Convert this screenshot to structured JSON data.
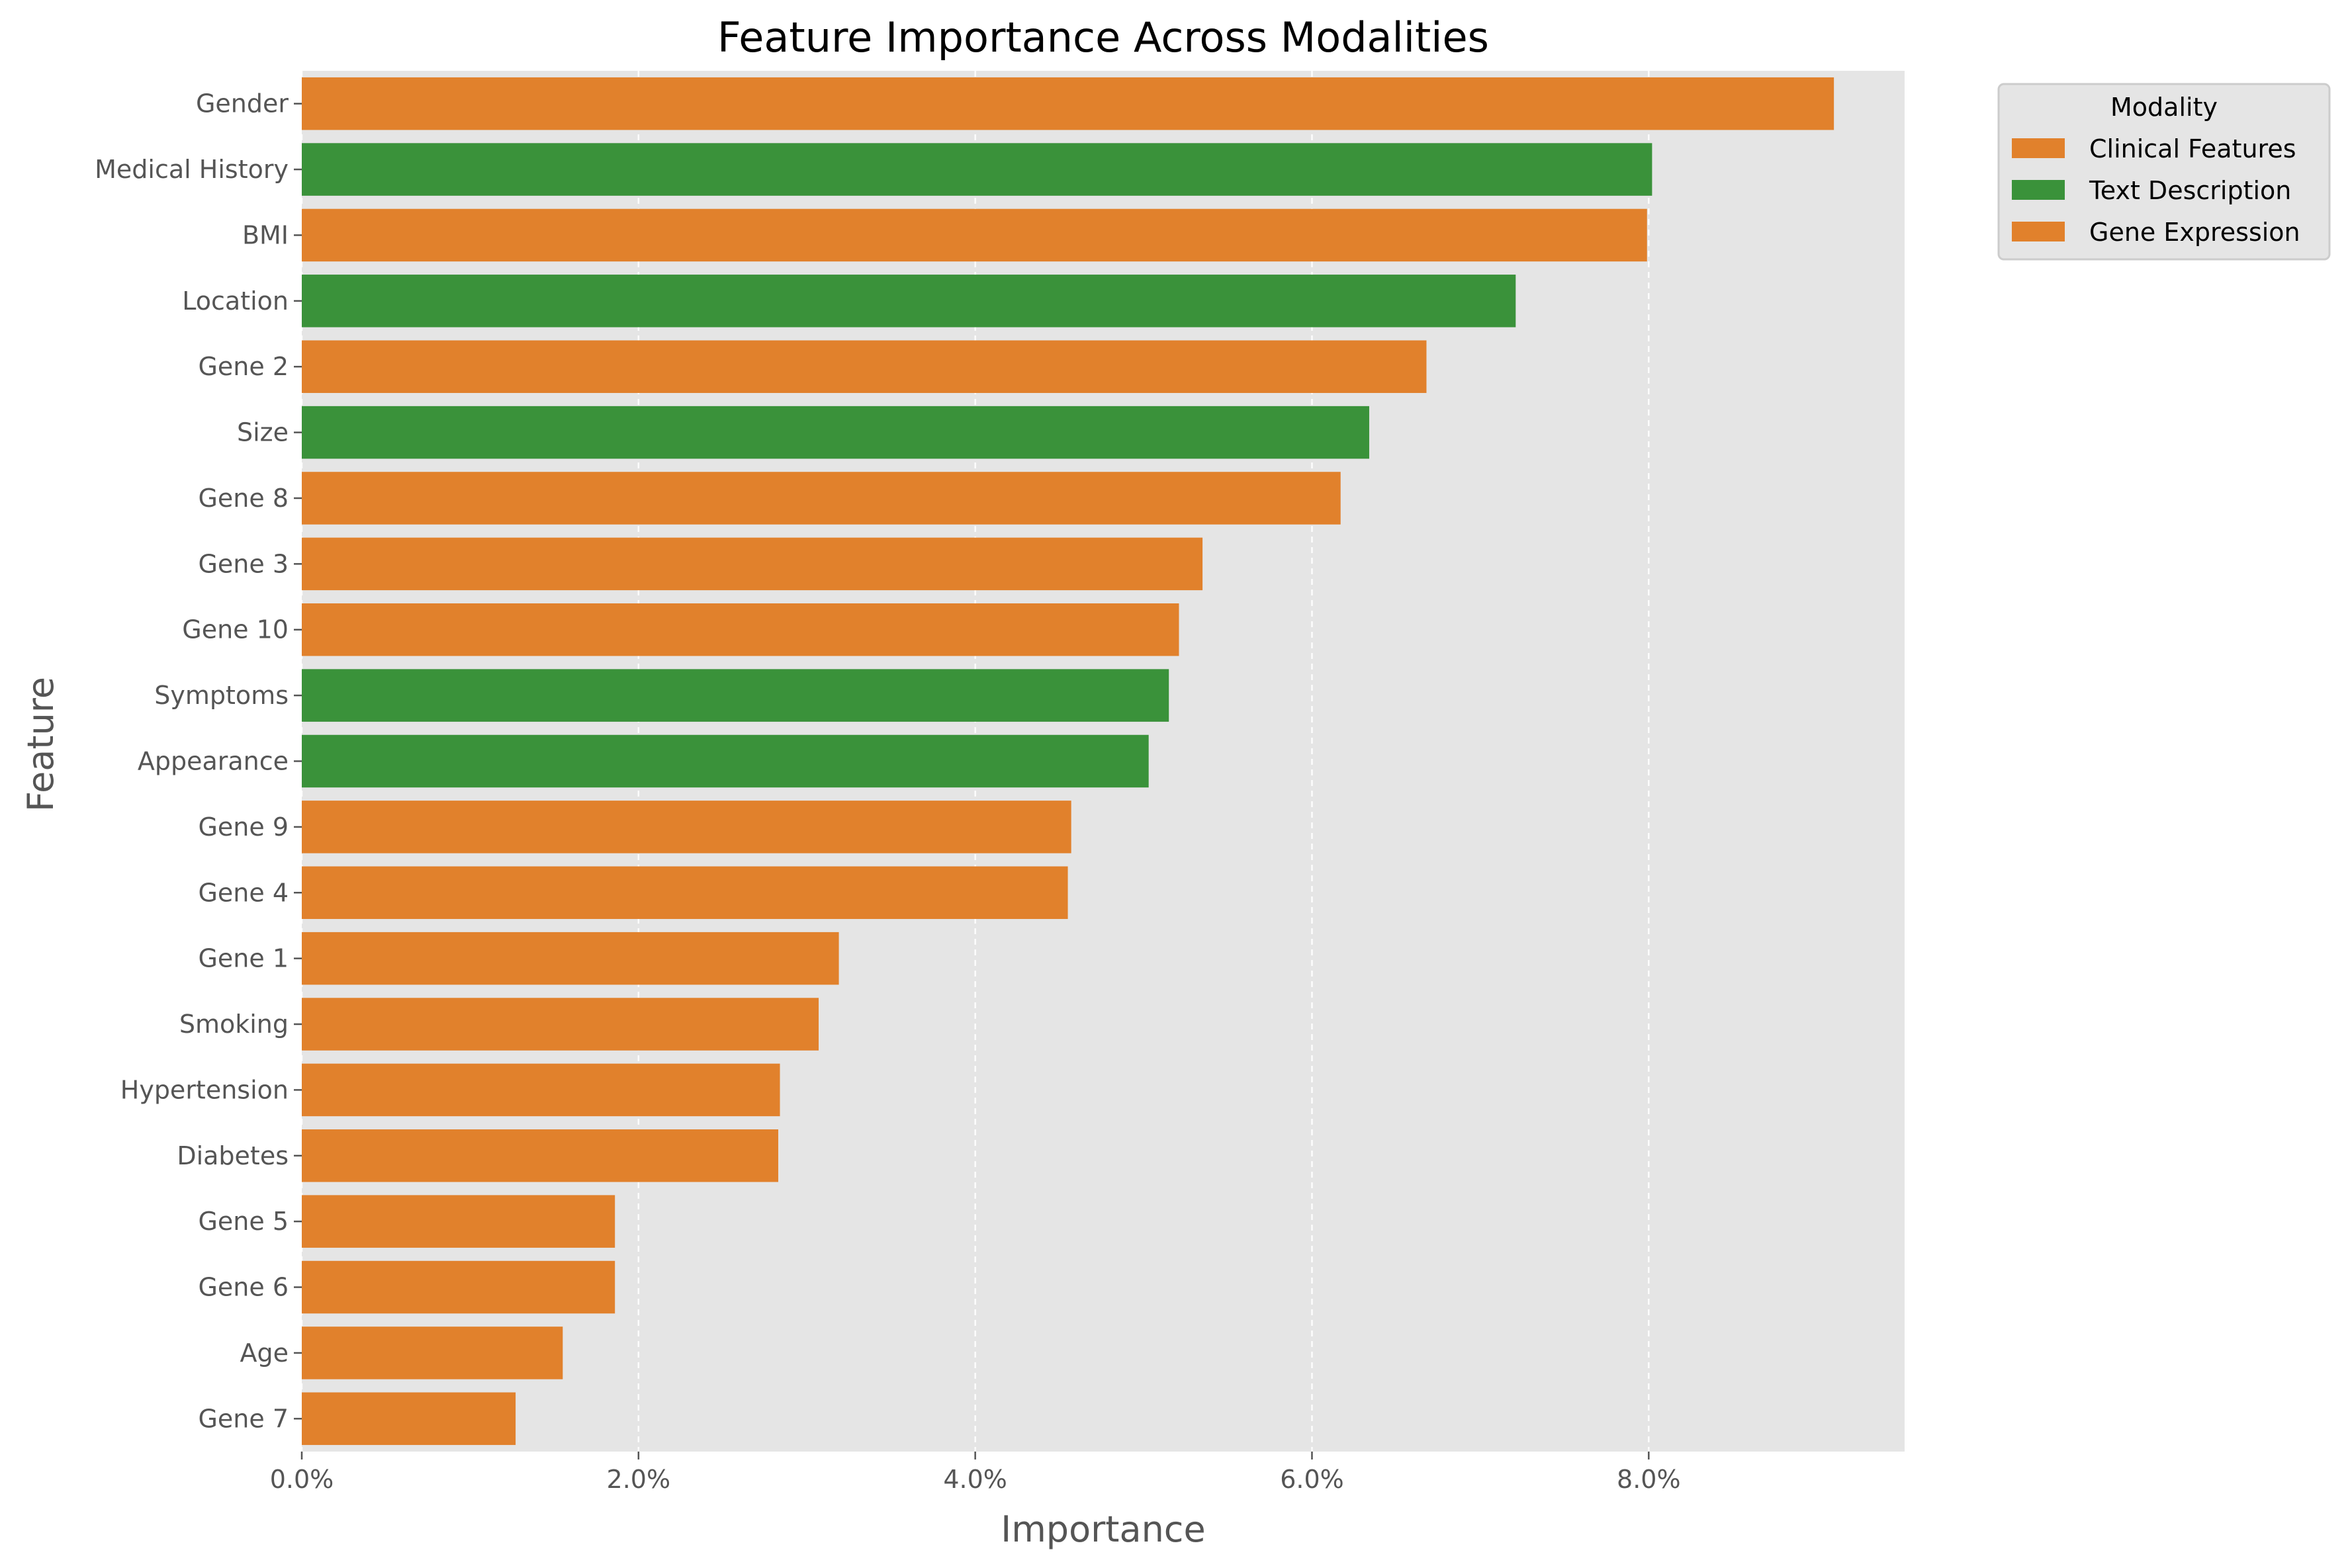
{
  "chart_data": {
    "type": "bar",
    "orientation": "horizontal",
    "title": "Feature Importance Across Modalities",
    "xlabel": "Importance",
    "ylabel": "Feature",
    "xlim": [
      0,
      0.0952
    ],
    "x_ticks": [
      0,
      0.02,
      0.04,
      0.06,
      0.08
    ],
    "x_tick_labels": [
      "0.0%",
      "2.0%",
      "4.0%",
      "6.0%",
      "8.0%"
    ],
    "grid": true,
    "legend_position": "outside-top-right",
    "legend_title": "Modality",
    "legend": [
      {
        "label": "Clinical Features",
        "color": "#e1812c"
      },
      {
        "label": "Text Description",
        "color": "#3a923a"
      },
      {
        "label": "Gene Expression",
        "color": "#e1812c"
      }
    ],
    "categories": [
      "Gender",
      "Medical History",
      "BMI",
      "Location",
      "Gene 2",
      "Size",
      "Gene 8",
      "Gene 3",
      "Gene 10",
      "Symptoms",
      "Appearance",
      "Gene 9",
      "Gene 4",
      "Gene 1",
      "Smoking",
      "Hypertension",
      "Diabetes",
      "Gene 5",
      "Gene 6",
      "Age",
      "Gene 7"
    ],
    "values": [
      0.091,
      0.0802,
      0.0799,
      0.0721,
      0.0668,
      0.0634,
      0.0617,
      0.0535,
      0.0521,
      0.0515,
      0.0503,
      0.0457,
      0.0455,
      0.0319,
      0.0307,
      0.0284,
      0.0283,
      0.0186,
      0.0186,
      0.0155,
      0.0127
    ],
    "modality": [
      "Clinical Features",
      "Text Description",
      "Clinical Features",
      "Text Description",
      "Gene Expression",
      "Text Description",
      "Gene Expression",
      "Gene Expression",
      "Gene Expression",
      "Text Description",
      "Text Description",
      "Gene Expression",
      "Gene Expression",
      "Gene Expression",
      "Clinical Features",
      "Clinical Features",
      "Clinical Features",
      "Gene Expression",
      "Gene Expression",
      "Clinical Features",
      "Gene Expression"
    ]
  },
  "colors": {
    "plot_background": "#e5e5e5",
    "grid": "#ffffff",
    "text": "#555555",
    "title": "#000000",
    "legend_background": "#e5e5e5",
    "legend_border": "#cccccc"
  }
}
